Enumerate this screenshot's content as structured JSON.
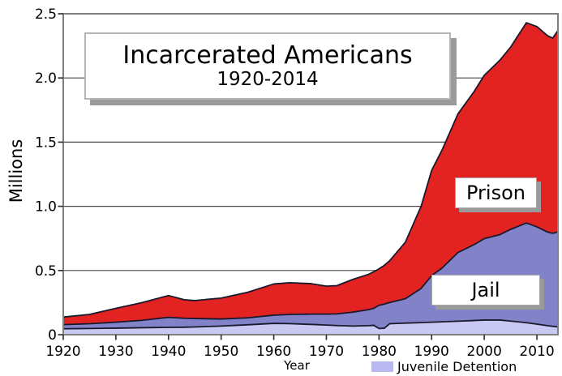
{
  "figure": {
    "title_line1": "Incarcerated Americans",
    "title_line2": "1920-2014",
    "ylabel": "Millions",
    "xlabel": "Year",
    "area_labels": {
      "prison": "Prison",
      "jail": "Jail"
    },
    "legend": {
      "label": "Juvenile Detention",
      "swatch_color": "#b9b9f0"
    },
    "colors": {
      "frame": "#808080",
      "gridline": "#4a4a4a",
      "tick": "#2a2a2a",
      "boundary_line": "#19192d"
    }
  },
  "chart_data": {
    "type": "area",
    "stacked": true,
    "title": "Incarcerated Americans 1920-2014",
    "xlabel": "Year",
    "ylabel": "Millions",
    "xlim": [
      1920,
      2014
    ],
    "ylim": [
      0,
      2.5
    ],
    "x_ticks": [
      1920,
      1930,
      1940,
      1950,
      1960,
      1970,
      1980,
      1990,
      2000,
      2010
    ],
    "y_ticks": [
      0,
      0.5,
      1.0,
      1.5,
      2.0,
      2.5
    ],
    "y_tick_labels": [
      "0",
      "0.5",
      "1.0",
      "1.5",
      "2.0",
      "2.5"
    ],
    "grid": "horizontal",
    "legend_position": "bottom",
    "years": [
      1920,
      1925,
      1930,
      1935,
      1940,
      1943,
      1945,
      1950,
      1955,
      1960,
      1963,
      1967,
      1970,
      1972,
      1975,
      1978,
      1979,
      1980,
      1981,
      1982,
      1985,
      1988,
      1990,
      1992,
      1995,
      1998,
      2000,
      2003,
      2005,
      2008,
      2010,
      2012,
      2013,
      2014
    ],
    "series": [
      {
        "name": "Juvenile Detention",
        "color": "#c8c8f2",
        "values": [
          0.046,
          0.048,
          0.051,
          0.054,
          0.057,
          0.058,
          0.06,
          0.067,
          0.077,
          0.088,
          0.086,
          0.08,
          0.075,
          0.071,
          0.067,
          0.07,
          0.073,
          0.048,
          0.05,
          0.085,
          0.09,
          0.094,
          0.097,
          0.1,
          0.105,
          0.11,
          0.114,
          0.114,
          0.106,
          0.093,
          0.082,
          0.07,
          0.065,
          0.061
        ]
      },
      {
        "name": "Jail",
        "color": "#8282c8",
        "values": [
          0.032,
          0.037,
          0.046,
          0.058,
          0.078,
          0.07,
          0.066,
          0.055,
          0.054,
          0.064,
          0.072,
          0.08,
          0.085,
          0.091,
          0.108,
          0.125,
          0.132,
          0.181,
          0.188,
          0.165,
          0.19,
          0.266,
          0.363,
          0.42,
          0.535,
          0.59,
          0.634,
          0.666,
          0.714,
          0.777,
          0.758,
          0.73,
          0.725,
          0.739
        ]
      },
      {
        "name": "Prison",
        "color": "#e32222",
        "values": [
          0.059,
          0.073,
          0.108,
          0.138,
          0.17,
          0.144,
          0.14,
          0.163,
          0.199,
          0.243,
          0.247,
          0.238,
          0.218,
          0.22,
          0.255,
          0.275,
          0.285,
          0.284,
          0.302,
          0.325,
          0.44,
          0.64,
          0.82,
          0.92,
          1.08,
          1.19,
          1.272,
          1.36,
          1.42,
          1.56,
          1.56,
          1.53,
          1.52,
          1.57
        ]
      }
    ]
  }
}
